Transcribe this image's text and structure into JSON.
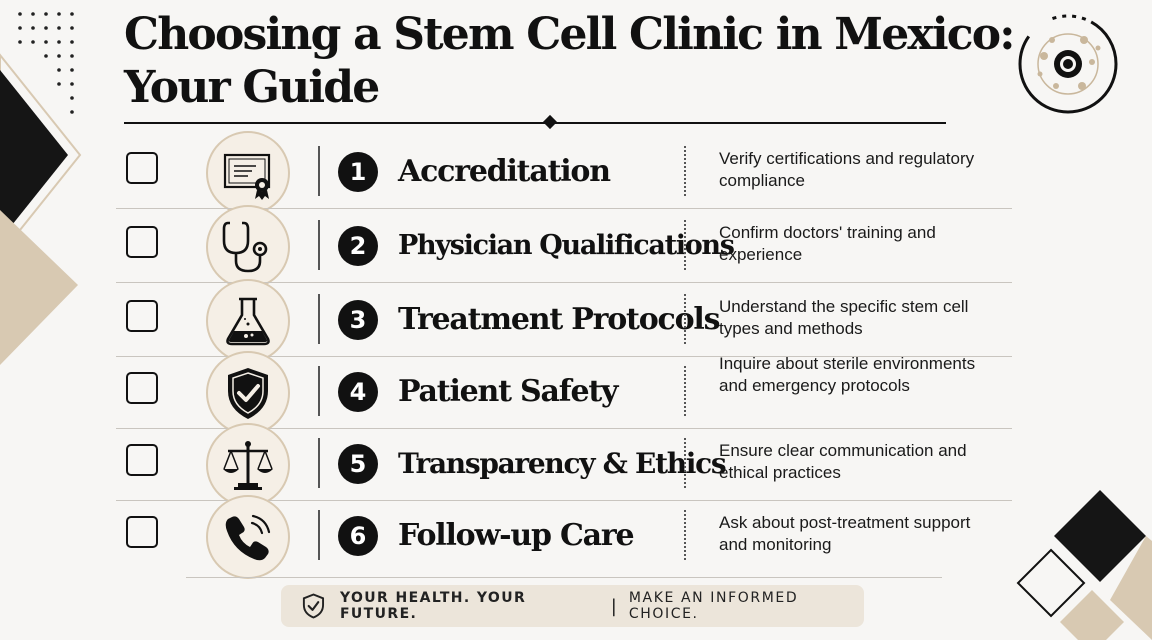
{
  "title": {
    "line1": "Choosing a Stem Cell Clinic in Mexico:",
    "line2": "Your Guide"
  },
  "items": [
    {
      "number": "1",
      "title": "Accreditation",
      "icon": "certificate-icon",
      "description": "Verify certifications and regulatory compliance"
    },
    {
      "number": "2",
      "title": "Physician Qualifications",
      "icon": "stethoscope-icon",
      "description": "Confirm doctors' training and experience"
    },
    {
      "number": "3",
      "title": "Treatment Protocols",
      "icon": "flask-icon",
      "description": "Understand the specific stem cell types and methods"
    },
    {
      "number": "4",
      "title": "Patient Safety",
      "icon": "shield-check-icon",
      "description": "Inquire about sterile environments and emergency protocols"
    },
    {
      "number": "5",
      "title": "Transparency & Ethics",
      "icon": "scales-icon",
      "description": "Ensure clear communication and ethical practices"
    },
    {
      "number": "6",
      "title": "Follow-up Care",
      "icon": "phone-icon",
      "description": "Ask about post-treatment support and monitoring"
    }
  ],
  "banner": {
    "part1": "YOUR HEALTH. YOUR FUTURE.",
    "separator": "|",
    "part2": "MAKE AN INFORMED CHOICE.",
    "icon": "shield-check-icon"
  },
  "colors": {
    "dark": "#111111",
    "beige": "#d8c9b2",
    "banner_bg": "#ece5da",
    "background": "#f7f6f4"
  }
}
